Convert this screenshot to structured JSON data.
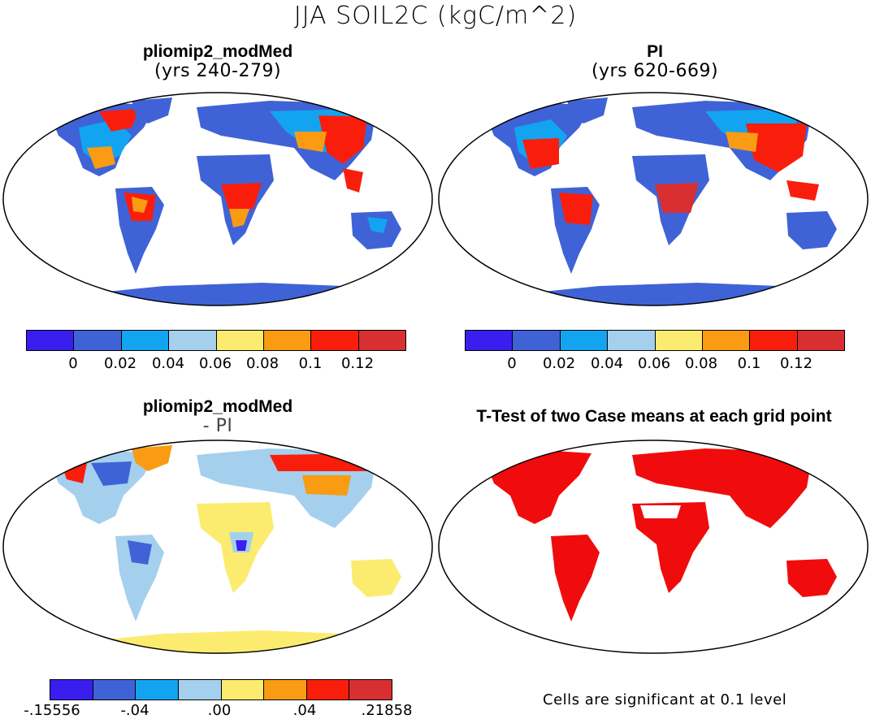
{
  "title": "JJA SOIL2C (kgC/m^2)",
  "panels": {
    "top_left": {
      "title": "pliomip2_modMed",
      "subtitle": "(yrs 240-279)"
    },
    "top_right": {
      "title": "PI",
      "subtitle": "(yrs 620-669)"
    },
    "bottom_left": {
      "title": "pliomip2_modMed",
      "subtitle": "- PI"
    },
    "bottom_right": {
      "title": "T-Test of two Case means at each grid point"
    }
  },
  "colors": {
    "abs_scale": [
      "#3a1ef0",
      "#3f63d6",
      "#12a4f0",
      "#a4d0ee",
      "#fbec6f",
      "#f99b13",
      "#f91e0c",
      "#d72f32"
    ],
    "diff_scale": [
      "#3a1ef0",
      "#3f63d6",
      "#12a4f0",
      "#a4d0ee",
      "#fbec6f",
      "#f99b13",
      "#f91e0c",
      "#d72f32"
    ],
    "significant": "#f00c0c",
    "antarctica_abs": "#3f63d6",
    "antarctica_diff": "#fbec6f"
  },
  "colorbar_abs": {
    "ticks": [
      "0",
      "0.02",
      "0.04",
      "0.06",
      "0.08",
      "0.1",
      "0.12"
    ]
  },
  "colorbar_diff": {
    "ticks": [
      "-.15556",
      "-.04",
      ".00",
      ".04",
      ".21858"
    ]
  },
  "note": "Cells are significant at 0.1 level"
}
